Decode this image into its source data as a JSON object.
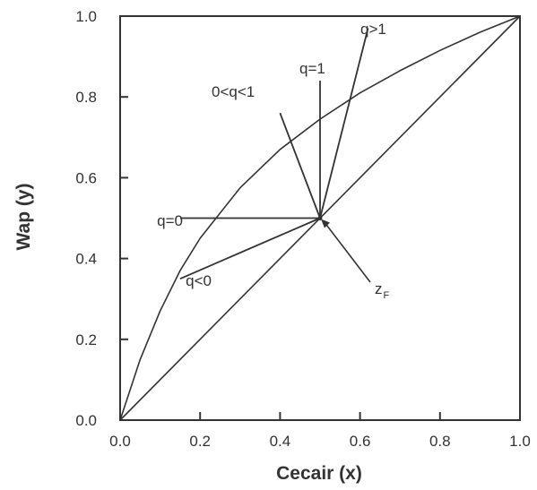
{
  "chart_data": {
    "type": "line",
    "title": "",
    "xlabel": "Cecair (x)",
    "ylabel": "Wap (y)",
    "xlim": [
      0,
      1
    ],
    "ylim": [
      0,
      1
    ],
    "x_ticks": [
      "0.0",
      "0.2",
      "0.4",
      "0.6",
      "0.8",
      "1.0"
    ],
    "y_ticks": [
      "0.0",
      "0.2",
      "0.4",
      "0.6",
      "0.8",
      "1.0"
    ],
    "grid": false,
    "legend": "none",
    "series": [
      {
        "points": [
          [
            0,
            0
          ],
          [
            1,
            1
          ]
        ]
      },
      {
        "points": [
          [
            0,
            0
          ],
          [
            0.05,
            0.15
          ],
          [
            0.1,
            0.27
          ],
          [
            0.15,
            0.37
          ],
          [
            0.2,
            0.45
          ],
          [
            0.3,
            0.575
          ],
          [
            0.4,
            0.67
          ],
          [
            0.5,
            0.745
          ],
          [
            0.6,
            0.81
          ],
          [
            0.7,
            0.865
          ],
          [
            0.8,
            0.915
          ],
          [
            0.9,
            0.96
          ],
          [
            1,
            1
          ]
        ]
      }
    ],
    "feed_point": {
      "x": 0.5,
      "y": 0.5
    },
    "q_lines": [
      {
        "label": "q=0",
        "to": [
          0.15,
          0.5
        ]
      },
      {
        "label": "q<0",
        "to": [
          0.15,
          0.35
        ]
      },
      {
        "label": "0<q<1",
        "to": [
          0.4,
          0.76
        ]
      },
      {
        "label": "q=1",
        "to": [
          0.5,
          0.84
        ]
      },
      {
        "label": "q>1",
        "to": [
          0.62,
          0.97
        ]
      }
    ],
    "annotations": {
      "q0": "q=0",
      "qneg": "q<0",
      "q_between": "0<q<1",
      "q1": "q=1",
      "qgt1": "q>1",
      "zf_main": "z",
      "zf_sub": "F"
    }
  }
}
